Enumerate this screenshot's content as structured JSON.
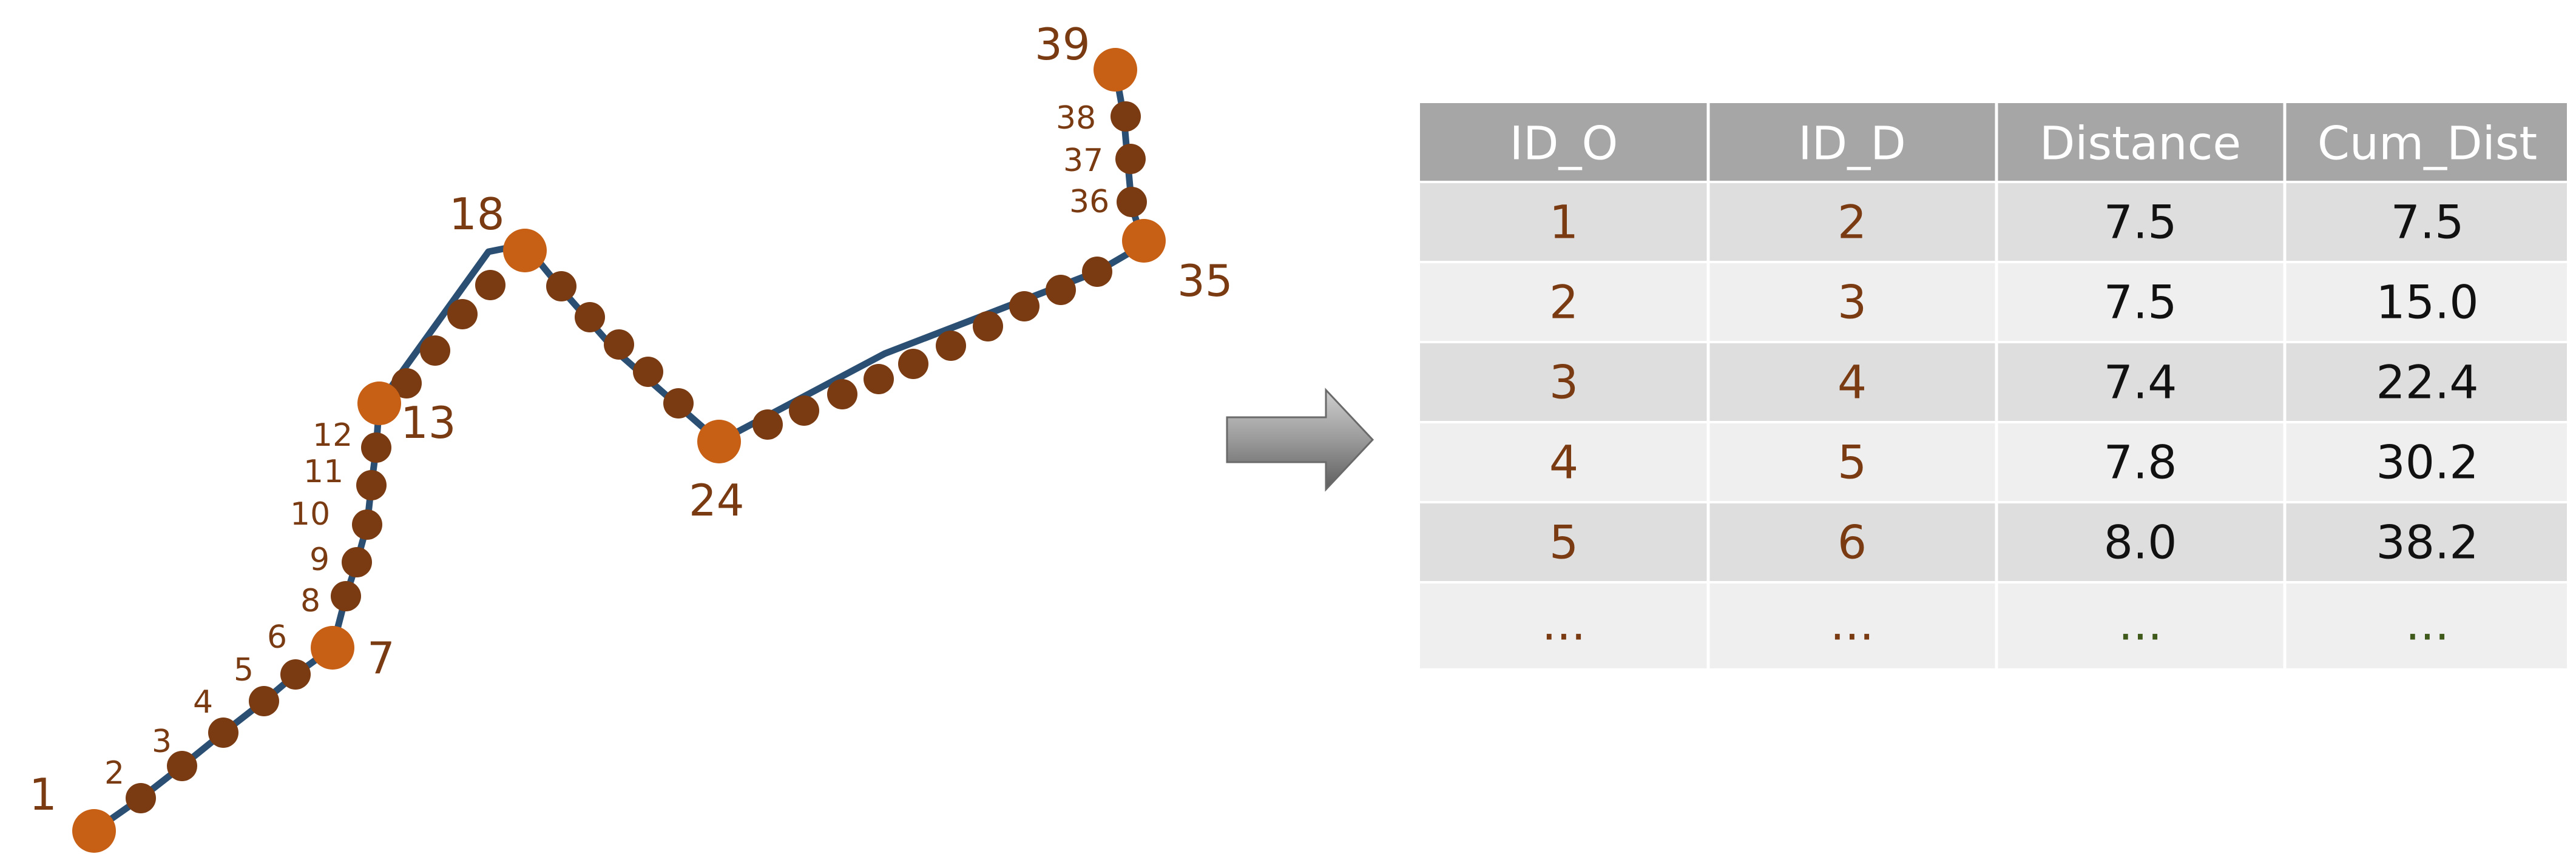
{
  "line_labels": {
    "major": [
      "1",
      "7",
      "13",
      "18",
      "24",
      "35",
      "39"
    ],
    "minor": [
      "2",
      "3",
      "4",
      "5",
      "6",
      "8",
      "9",
      "10",
      "11",
      "12",
      "36",
      "37",
      "38"
    ]
  },
  "table": {
    "headers": [
      "ID_O",
      "ID_D",
      "Distance",
      "Cum_Dist"
    ],
    "rows": [
      [
        "1",
        "2",
        "7.5",
        "7.5"
      ],
      [
        "2",
        "3",
        "7.5",
        "15.0"
      ],
      [
        "3",
        "4",
        "7.4",
        "22.4"
      ],
      [
        "4",
        "5",
        "7.8",
        "30.2"
      ],
      [
        "5",
        "6",
        "8.0",
        "38.2"
      ],
      [
        "...",
        "...",
        "...",
        "..."
      ]
    ]
  },
  "colors": {
    "line": "#2a4f73",
    "major_point": "#c75f14",
    "minor_point": "#7a3b12",
    "label": "#7a3b12",
    "header_bg": "#a6a6a6",
    "row_dark": "#dedede",
    "row_light": "#efefef",
    "arrow": "#8a8a8a"
  }
}
